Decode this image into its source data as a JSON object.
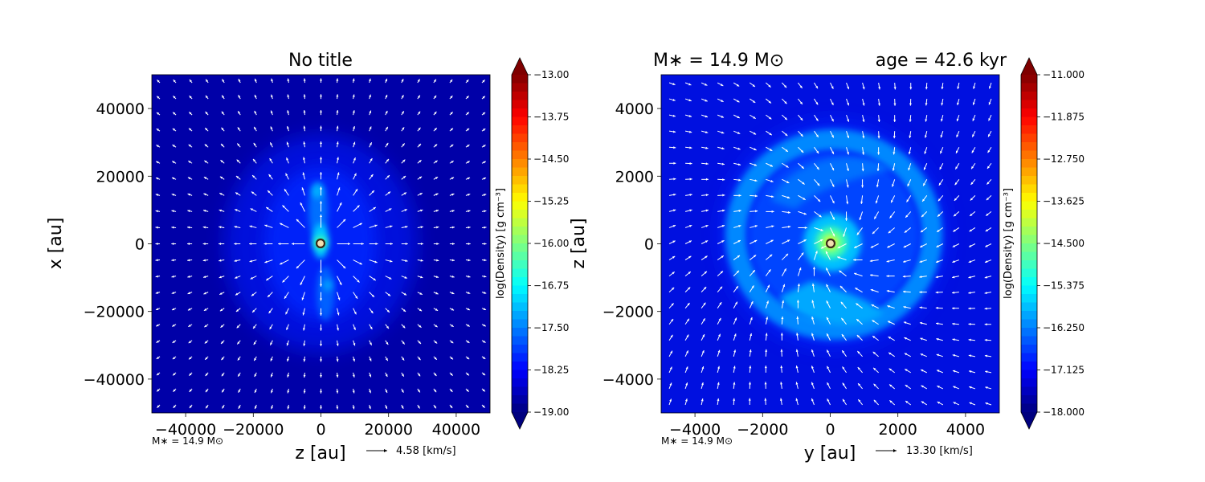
{
  "colormap": [
    "#00007f",
    "#0000ff",
    "#007fff",
    "#00ffff",
    "#7fff7f",
    "#ffff00",
    "#ff7f00",
    "#ff0000",
    "#7f0000"
  ],
  "chart_data": [
    {
      "type": "heatmap",
      "title": "No title",
      "xlabel": "z [au]",
      "ylabel": "x [au]",
      "xlim": [
        -50000,
        50000
      ],
      "ylim": [
        -50000,
        50000
      ],
      "xticks": [
        -40000,
        -20000,
        0,
        20000,
        40000
      ],
      "yticks": [
        -40000,
        -20000,
        0,
        20000,
        40000
      ],
      "xtick_labels": [
        "−40000",
        "−20000",
        "0",
        "20000",
        "40000"
      ],
      "ytick_labels": [
        "−40000",
        "−20000",
        "0",
        "20000",
        "40000"
      ],
      "colorbar": {
        "label": "log(Density) [g cm⁻³]",
        "range": [
          -19.0,
          -13.0
        ],
        "ticks": [
          -13.0,
          -13.75,
          -14.5,
          -15.25,
          -16.0,
          -16.75,
          -17.5,
          -18.25,
          -19.0
        ],
        "tick_labels": [
          "−13.00",
          "−13.75",
          "−14.50",
          "−15.25",
          "−16.00",
          "−16.75",
          "−17.50",
          "−18.25",
          "−19.00"
        ],
        "extend": "both"
      },
      "annotation_mass": "M∗ = 14.9 M⊙",
      "quiver_key": "4.58 [km/s]",
      "structure": "bipolar outflow along x, compact dense core at origin",
      "sink_position": [
        0,
        0
      ]
    },
    {
      "type": "heatmap",
      "title_left": "M∗ = 14.9 M⊙",
      "title_right": "age = 42.6 kyr",
      "xlabel": "y [au]",
      "ylabel": "z [au]",
      "xlim": [
        -5000,
        5000
      ],
      "ylim": [
        -5000,
        5000
      ],
      "xticks": [
        -4000,
        -2000,
        0,
        2000,
        4000
      ],
      "yticks": [
        -4000,
        -2000,
        0,
        2000,
        4000
      ],
      "xtick_labels": [
        "−4000",
        "−2000",
        "0",
        "2000",
        "4000"
      ],
      "ytick_labels": [
        "−4000",
        "−2000",
        "0",
        "2000",
        "4000"
      ],
      "colorbar": {
        "label": "log(Density) [g cm⁻³]",
        "range": [
          -18.0,
          -11.0
        ],
        "ticks": [
          -11.0,
          -11.875,
          -12.75,
          -13.625,
          -14.5,
          -15.375,
          -16.25,
          -17.125,
          -18.0
        ],
        "tick_labels": [
          "−11.000",
          "−11.875",
          "−12.750",
          "−13.625",
          "−14.500",
          "−15.375",
          "−16.250",
          "−17.125",
          "−18.000"
        ],
        "extend": "both"
      },
      "annotation_mass": "M∗ = 14.9 M⊙",
      "quiver_key": "13.30 [km/s]",
      "structure": "ring-shaped spiral envelope with dense core at origin",
      "sink_position": [
        0,
        0
      ]
    }
  ]
}
